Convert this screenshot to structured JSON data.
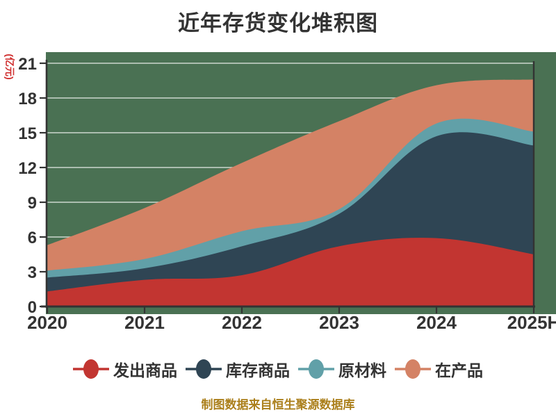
{
  "footer": {
    "text": "制图数据来自恒生聚源数据库",
    "color": "#ab7f1b"
  },
  "colors": {
    "title_text": "#333333",
    "axis_text": "#333333",
    "axis_line": "#333333",
    "plot_background": "#4a7153",
    "y_unit_label": "#d03030",
    "footer_text": "#ab7f1b"
  },
  "chart_data": {
    "type": "area",
    "stacked": true,
    "smooth": true,
    "title": "近年存货变化堆积图",
    "ylabel": "(亿元)",
    "xlabel": "",
    "categories": [
      "2020",
      "2021",
      "2022",
      "2023",
      "2024",
      "2025H"
    ],
    "y_ticks": [
      0,
      3,
      6,
      9,
      12,
      15,
      18,
      21
    ],
    "ylim": [
      0,
      21
    ],
    "grid": true,
    "legend_position": "bottom",
    "plot_bg": "#4a7153",
    "series": [
      {
        "key": "shipped-goods",
        "name": "发出商品",
        "color": "#c23531",
        "values": [
          1.3,
          2.3,
          2.7,
          5.2,
          5.9,
          4.5
        ]
      },
      {
        "key": "stocked-goods",
        "name": "库存商品",
        "color": "#2f4554",
        "values": [
          1.2,
          1.0,
          2.5,
          2.8,
          8.8,
          9.4
        ]
      },
      {
        "key": "raw-materials",
        "name": "原材料",
        "color": "#61a0a8",
        "values": [
          0.6,
          0.8,
          1.3,
          0.4,
          1.1,
          1.2
        ]
      },
      {
        "key": "in-production",
        "name": "在产品",
        "color": "#d48265",
        "values": [
          2.2,
          4.4,
          5.9,
          7.6,
          3.3,
          4.5
        ]
      }
    ]
  }
}
